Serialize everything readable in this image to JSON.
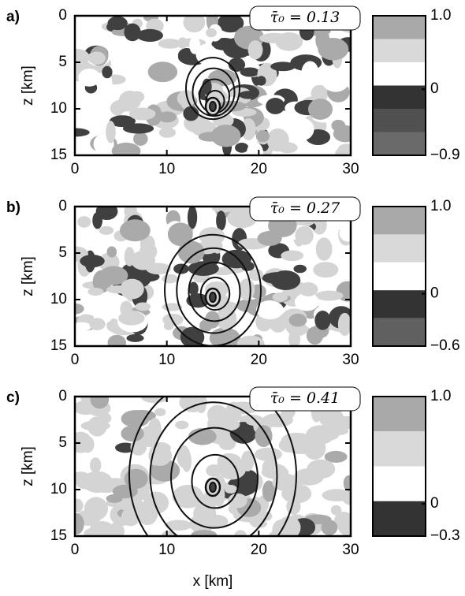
{
  "chart_data": [
    {
      "type": "field",
      "panel": "a)",
      "annotation": "τ̄₀ = 0.13",
      "ylabel": "z [km]",
      "xlim": [
        0,
        30
      ],
      "xticks": [
        0,
        10,
        20,
        30
      ],
      "ylim": [
        15,
        0
      ],
      "yticks": [
        0,
        5,
        10,
        15
      ],
      "clim": [
        -0.9,
        1
      ],
      "cticks": [
        {
          "value": 1,
          "label": "1.0"
        },
        0,
        {
          "value": -0.9,
          "label": "−0.9"
        }
      ],
      "colorbar_colors": [
        "#a9a9a9",
        "#d9d9d9",
        "#ffffff",
        "#333333",
        "#505050",
        "#6a6a6a"
      ]
    },
    {
      "type": "field",
      "panel": "b)",
      "annotation": "τ̄₀ = 0.27",
      "ylabel": "z [km]",
      "xlim": [
        0,
        30
      ],
      "xticks": [
        0,
        10,
        20,
        30
      ],
      "ylim": [
        15,
        0
      ],
      "yticks": [
        0,
        5,
        10,
        15
      ],
      "clim": [
        -0.6,
        1
      ],
      "cticks": [
        {
          "value": 1,
          "label": "1.0"
        },
        0,
        {
          "value": -0.6,
          "label": "−0.6"
        }
      ],
      "colorbar_colors": [
        "#a9a9a9",
        "#d9d9d9",
        "#ffffff",
        "#333333",
        "#606060"
      ]
    },
    {
      "type": "field",
      "panel": "c)",
      "annotation": "τ̄₀ = 0.41",
      "ylabel": "z [km]",
      "xlabel": "x [km]",
      "xlim": [
        0,
        30
      ],
      "xticks": [
        0,
        10,
        20,
        30
      ],
      "ylim": [
        15,
        0
      ],
      "yticks": [
        0,
        5,
        10,
        15
      ],
      "clim": [
        -0.3,
        1
      ],
      "cticks": [
        {
          "value": 1,
          "label": "1.0"
        },
        0,
        {
          "value": -0.3,
          "label": "−0.3"
        }
      ],
      "colorbar_colors": [
        "#a9a9a9",
        "#d9d9d9",
        "#ffffff",
        "#333333"
      ]
    }
  ]
}
